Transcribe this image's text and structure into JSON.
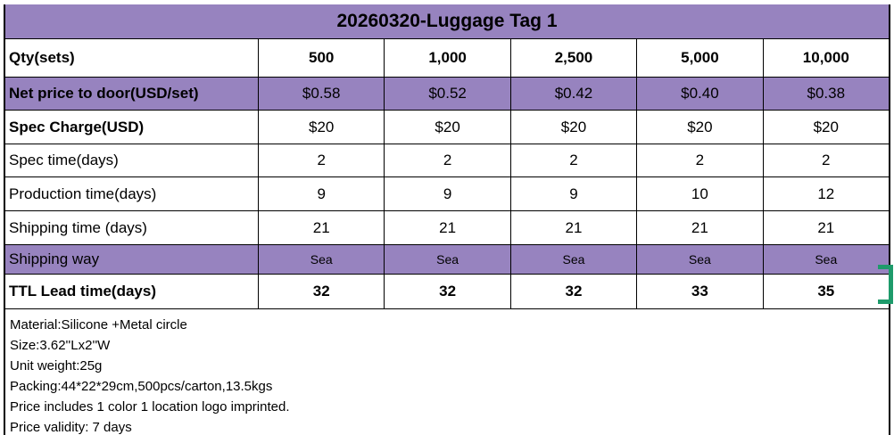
{
  "sheet_title": "20260320-Luggage Tag 1",
  "colors": {
    "highlight_fill": "#9783bf",
    "selection_green": "#1e9b6b",
    "grid_border": "#000000",
    "text": "#000000",
    "background": "#ffffff"
  },
  "rows": {
    "qty": {
      "label": "Qty(sets)",
      "values": [
        "500",
        "1,000",
        "2,500",
        "5,000",
        "10,000"
      ]
    },
    "net_price": {
      "label": "Net price to door(USD/set)",
      "values": [
        "$0.58",
        "$0.52",
        "$0.42",
        "$0.40",
        "$0.38"
      ]
    },
    "spec_charge": {
      "label": "Spec Charge(USD)",
      "values": [
        "$20",
        "$20",
        "$20",
        "$20",
        "$20"
      ]
    },
    "spec_time": {
      "label": "Spec time(days)",
      "values": [
        "2",
        "2",
        "2",
        "2",
        "2"
      ]
    },
    "production_time": {
      "label": "Production time(days)",
      "values": [
        "9",
        "9",
        "9",
        "10",
        "12"
      ]
    },
    "shipping_time": {
      "label": "Shipping time (days)",
      "values": [
        "21",
        "21",
        "21",
        "21",
        "21"
      ]
    },
    "shipping_way": {
      "label": "Shipping way",
      "values": [
        "Sea",
        "Sea",
        "Sea",
        "Sea",
        "Sea"
      ]
    },
    "ttl_lead_time": {
      "label": "TTL Lead time(days)",
      "values": [
        "32",
        "32",
        "32",
        "33",
        "35"
      ]
    }
  },
  "notes": {
    "lines": [
      "Material:Silicone +Metal circle",
      "Size:3.62''Lx2''W",
      "Unit weight:25g",
      "Packing:44*22*29cm,500pcs/carton,13.5kgs",
      "Price includes 1 color 1 location logo imprinted.",
      "Price validity: 7 days"
    ]
  }
}
